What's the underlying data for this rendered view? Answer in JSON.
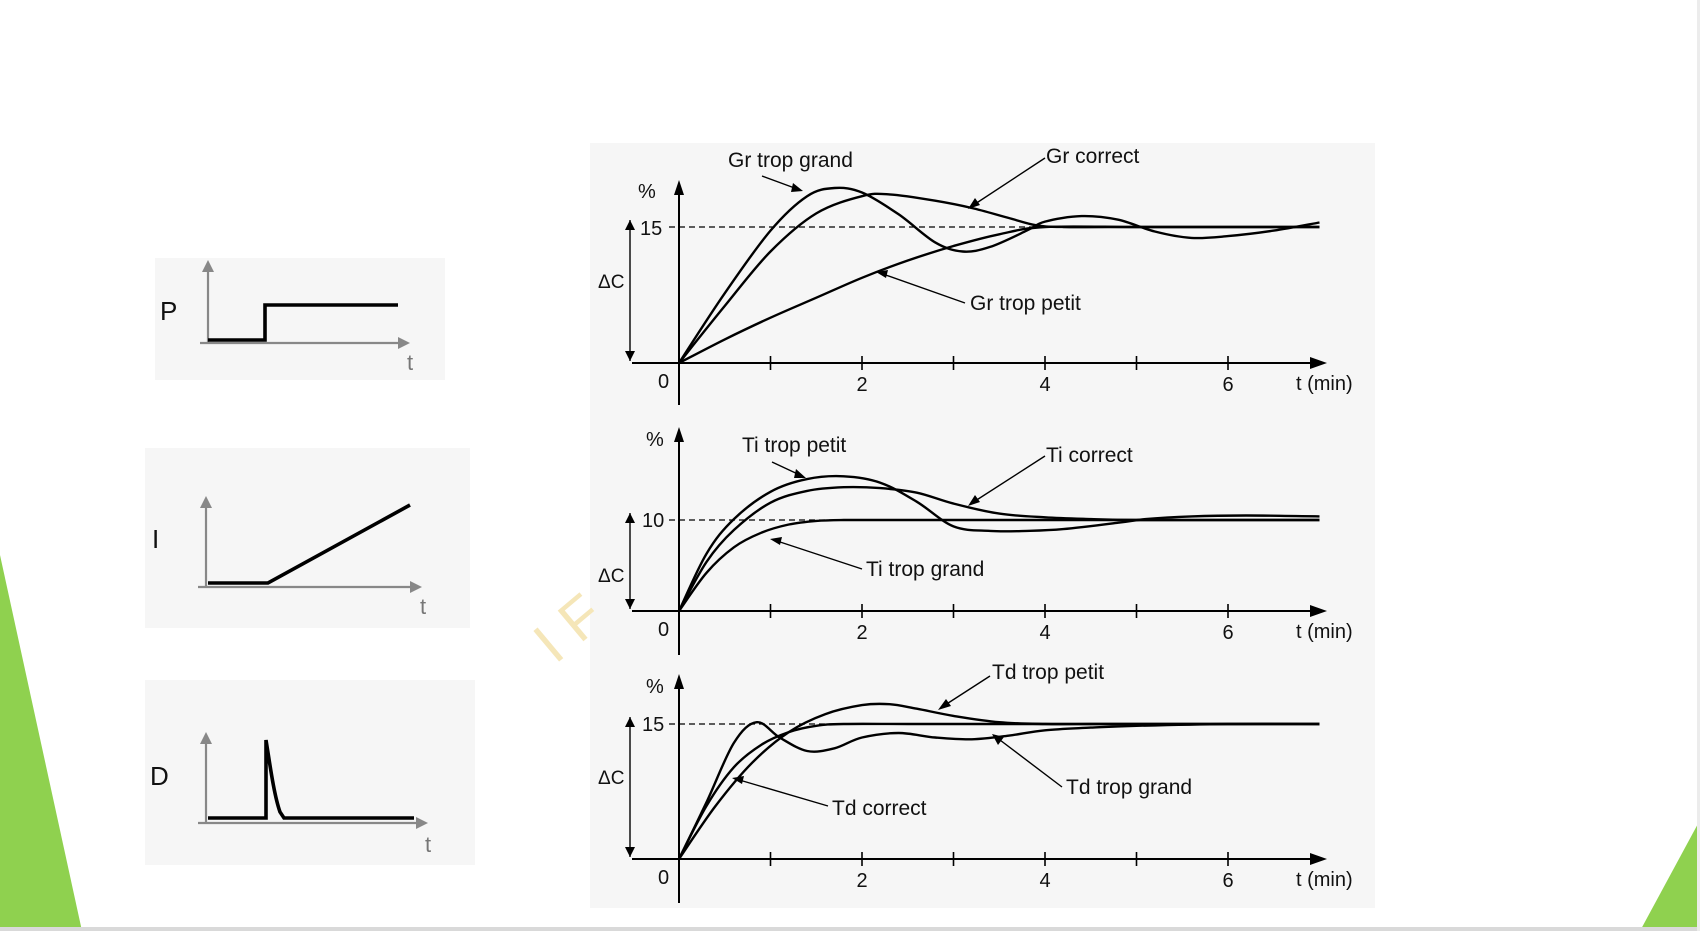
{
  "colors": {
    "accent_green": "#8fd14f",
    "curve": "#000000",
    "axis_grey": "#888888"
  },
  "left_signals": [
    {
      "label": "P",
      "t_label": "t",
      "shape": "step"
    },
    {
      "label": "I",
      "t_label": "t",
      "shape": "ramp"
    },
    {
      "label": "D",
      "t_label": "t",
      "shape": "impulse"
    }
  ],
  "watermark": "I F",
  "chart_data": [
    {
      "type": "line",
      "ylabel": "%",
      "xlabel": "t (min)",
      "delta_label": "ΔC",
      "setpoint": 15,
      "setpoint_label": "15",
      "origin_label": "0",
      "xlim": [
        0,
        7
      ],
      "x_ticks": [
        1,
        2,
        3,
        4,
        5,
        6
      ],
      "x_tick_labels": [
        "2",
        "4",
        "6"
      ],
      "x_tick_label_values": [
        2,
        4,
        6
      ],
      "series": [
        {
          "name": "Gr trop grand",
          "x": [
            0,
            0.5,
            1.0,
            1.4,
            1.7,
            2.0,
            2.4,
            2.8,
            3.1,
            3.4,
            3.8,
            4.0,
            4.4,
            4.8,
            5.2,
            5.6,
            6.0,
            6.5,
            7.0
          ],
          "y": [
            0,
            7.7,
            14.6,
            18.4,
            19.3,
            18.8,
            16.4,
            13.3,
            12.3,
            12.8,
            14.6,
            15.6,
            16.2,
            15.8,
            14.5,
            13.8,
            14.0,
            14.6,
            15.5
          ]
        },
        {
          "name": "Gr correct",
          "x": [
            0,
            0.5,
            1.0,
            1.5,
            2.0,
            2.3,
            2.8,
            3.2,
            3.6,
            3.9,
            4.2,
            5.0,
            6.0,
            7.0
          ],
          "y": [
            0,
            6.3,
            12.3,
            16.5,
            18.4,
            18.6,
            17.9,
            17.1,
            16.0,
            15.2,
            15.0,
            15.0,
            15.0,
            15.0
          ]
        },
        {
          "name": "Gr trop petit",
          "x": [
            0,
            0.5,
            1.0,
            1.5,
            2.0,
            2.5,
            3.0,
            3.5,
            4.0,
            5.0,
            6.0,
            7.0
          ],
          "y": [
            0,
            2.6,
            5.0,
            7.2,
            9.4,
            11.3,
            12.9,
            14.2,
            15.0,
            15.0,
            15.0,
            15.0
          ]
        }
      ],
      "annotations": [
        "Gr trop grand",
        "Gr correct",
        "Gr trop petit"
      ]
    },
    {
      "type": "line",
      "ylabel": "%",
      "xlabel": "t (min)",
      "delta_label": "ΔC",
      "setpoint": 10,
      "setpoint_label": "10",
      "origin_label": "0",
      "xlim": [
        0,
        7
      ],
      "x_ticks": [
        1,
        2,
        3,
        4,
        5,
        6
      ],
      "x_tick_labels": [
        "2",
        "4",
        "6"
      ],
      "x_tick_label_values": [
        2,
        4,
        6
      ],
      "series": [
        {
          "name": "Ti trop petit",
          "x": [
            0,
            0.3,
            0.6,
            1.0,
            1.4,
            1.8,
            2.2,
            2.6,
            3.0,
            3.4,
            3.8,
            4.2,
            4.8,
            5.1,
            5.6,
            6.2,
            7.0
          ],
          "y": [
            0,
            6.3,
            10.1,
            13.1,
            14.5,
            14.8,
            14.1,
            12.0,
            9.3,
            8.8,
            8.8,
            9.0,
            9.7,
            10.1,
            10.4,
            10.5,
            10.4
          ]
        },
        {
          "name": "Ti correct",
          "x": [
            0,
            0.3,
            0.6,
            1.0,
            1.4,
            1.8,
            2.2,
            2.6,
            3.0,
            3.5,
            4.0,
            4.5,
            5.0,
            6.0,
            7.0
          ],
          "y": [
            0,
            5.4,
            8.9,
            11.9,
            13.2,
            13.6,
            13.5,
            13.0,
            11.8,
            10.7,
            10.3,
            10.1,
            10.0,
            10.0,
            10.0
          ]
        },
        {
          "name": "Ti trop grand",
          "x": [
            0,
            0.3,
            0.6,
            0.9,
            1.2,
            1.5,
            1.8,
            2.5,
            3.5,
            5.0,
            7.0
          ],
          "y": [
            0,
            4.2,
            7.0,
            8.6,
            9.5,
            9.9,
            10.0,
            10.0,
            10.0,
            10.0,
            10.0
          ]
        }
      ],
      "annotations": [
        "Ti trop petit",
        "Ti correct",
        "Ti trop grand"
      ]
    },
    {
      "type": "line",
      "ylabel": "%",
      "xlabel": "t (min)",
      "delta_label": "ΔC",
      "setpoint": 15,
      "setpoint_label": "15",
      "origin_label": "0",
      "xlim": [
        0,
        7
      ],
      "x_ticks": [
        1,
        2,
        3,
        4,
        5,
        6
      ],
      "x_tick_labels": [
        "2",
        "4",
        "6"
      ],
      "x_tick_label_values": [
        2,
        4,
        6
      ],
      "series": [
        {
          "name": "Td trop petit",
          "x": [
            0,
            0.4,
            0.8,
            1.2,
            1.6,
            2.0,
            2.3,
            2.6,
            3.0,
            3.5,
            4.0,
            4.5,
            5.0,
            6.0,
            7.0
          ],
          "y": [
            0,
            5.9,
            10.7,
            14.1,
            16.1,
            17.1,
            17.2,
            16.7,
            15.9,
            15.2,
            15.0,
            15.0,
            15.0,
            15.0,
            15.0
          ]
        },
        {
          "name": "Td correct",
          "x": [
            0,
            0.3,
            0.6,
            0.9,
            1.2,
            1.5,
            1.8,
            2.5,
            3.5,
            5.0,
            7.0
          ],
          "y": [
            0,
            5.9,
            10.2,
            12.7,
            14.1,
            14.8,
            15.0,
            15.0,
            15.0,
            15.0,
            15.0
          ]
        },
        {
          "name": "Td trop grand",
          "x": [
            0,
            0.3,
            0.6,
            0.85,
            1.1,
            1.4,
            1.7,
            2.0,
            2.4,
            2.8,
            3.2,
            3.6,
            4.0,
            4.5,
            5.0,
            6.0,
            7.0
          ],
          "y": [
            0,
            6.3,
            12.9,
            15.2,
            13.5,
            12.0,
            12.3,
            13.5,
            14.0,
            13.5,
            13.3,
            13.7,
            14.3,
            14.6,
            14.8,
            15.0,
            15.0
          ]
        }
      ],
      "annotations": [
        "Td trop petit",
        "Td trop grand",
        "Td correct"
      ]
    }
  ]
}
